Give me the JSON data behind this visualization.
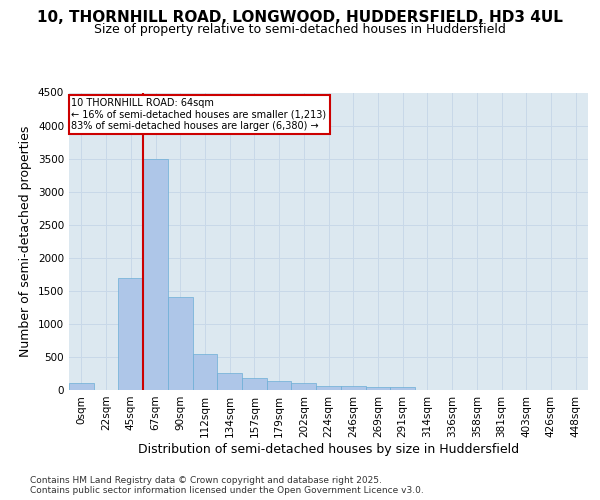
{
  "title_line1": "10, THORNHILL ROAD, LONGWOOD, HUDDERSFIELD, HD3 4UL",
  "title_line2": "Size of property relative to semi-detached houses in Huddersfield",
  "xlabel": "Distribution of semi-detached houses by size in Huddersfield",
  "ylabel": "Number of semi-detached properties",
  "categories": [
    "0sqm",
    "22sqm",
    "45sqm",
    "67sqm",
    "90sqm",
    "112sqm",
    "134sqm",
    "157sqm",
    "179sqm",
    "202sqm",
    "224sqm",
    "246sqm",
    "269sqm",
    "291sqm",
    "314sqm",
    "336sqm",
    "358sqm",
    "381sqm",
    "403sqm",
    "426sqm",
    "448sqm"
  ],
  "values": [
    100,
    5,
    1700,
    3500,
    1400,
    540,
    250,
    175,
    130,
    100,
    60,
    55,
    50,
    45,
    5,
    3,
    2,
    1,
    0,
    0,
    0
  ],
  "bar_color": "#aec6e8",
  "bar_edge_color": "#6baed6",
  "red_line_label": "10 THORNHILL ROAD: 64sqm",
  "annotation_smaller": "← 16% of semi-detached houses are smaller (1,213)",
  "annotation_larger": "83% of semi-detached houses are larger (6,380) →",
  "red_line_index": 2.5,
  "ylim": [
    0,
    4500
  ],
  "yticks": [
    0,
    500,
    1000,
    1500,
    2000,
    2500,
    3000,
    3500,
    4000,
    4500
  ],
  "grid_color": "#c8d8e8",
  "background_color": "#dce8f0",
  "footer_line1": "Contains HM Land Registry data © Crown copyright and database right 2025.",
  "footer_line2": "Contains public sector information licensed under the Open Government Licence v3.0.",
  "title_fontsize": 11,
  "subtitle_fontsize": 9,
  "axis_label_fontsize": 9,
  "tick_fontsize": 7.5,
  "footer_fontsize": 6.5
}
